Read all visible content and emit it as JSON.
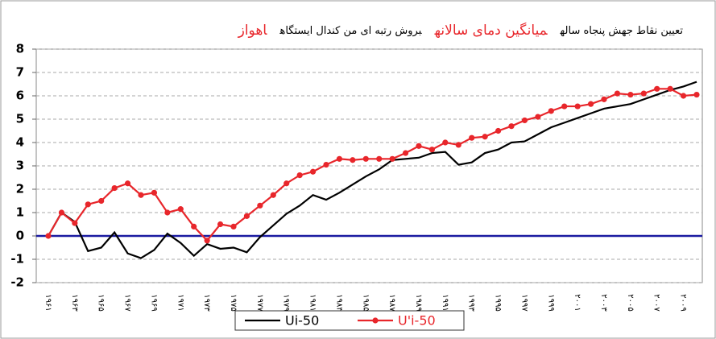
{
  "chart_data": {
    "type": "line",
    "title_parts": [
      {
        "text": "تعیین نقاط جهش پنجاه ساله",
        "color": "#000000"
      },
      {
        "text": "میانگین دمای سالانه",
        "color": "#e8262b"
      },
      {
        "text": "بروش رتبه ای من کندال ایستگاه",
        "color": "#000000"
      },
      {
        "text": "اهواز",
        "color": "#e8262b"
      }
    ],
    "categories": [
      "۱۹۶۱",
      null,
      "۱۹۶۳",
      null,
      "۱۹۶۵",
      null,
      "۱۹۶۷",
      null,
      "۱۹۶۹",
      null,
      "۱۹۷۱",
      null,
      "۱۹۷۳",
      null,
      "۱۹۷۵",
      null,
      "۱۹۷۷",
      null,
      "۱۹۷۹",
      null,
      "۱۹۸۱",
      null,
      "۱۹۸۳",
      null,
      "۱۹۸۵",
      null,
      "۱۹۸۷",
      null,
      "۱۹۸۹",
      null,
      "۱۹۹۱",
      null,
      "۱۹۹۳",
      null,
      "۱۹۹۵",
      null,
      "۱۹۹۷",
      null,
      "۱۹۹۹",
      null,
      "۲۰۰۱",
      null,
      "۲۰۰۳",
      null,
      "۲۰۰۵",
      null,
      "۲۰۰۷",
      null,
      "۲۰۰۹",
      null
    ],
    "series": [
      {
        "name": "Ui-50",
        "color": "#000000",
        "marker": false,
        "values": [
          0,
          1.0,
          0.6,
          -0.65,
          -0.5,
          0.15,
          -0.75,
          -0.95,
          -0.6,
          0.1,
          -0.3,
          -0.85,
          -0.35,
          -0.55,
          -0.5,
          -0.7,
          -0.05,
          0.45,
          0.95,
          1.3,
          1.75,
          1.55,
          1.85,
          2.2,
          2.55,
          2.85,
          3.25,
          3.3,
          3.35,
          3.55,
          3.6,
          3.05,
          3.15,
          3.55,
          3.7,
          4.0,
          4.05,
          4.35,
          4.65,
          4.85,
          5.05,
          5.25,
          5.45,
          5.55,
          5.65,
          5.85,
          6.05,
          6.25,
          6.4,
          6.6
        ]
      },
      {
        "name": "U'i-50",
        "color": "#e8262b",
        "marker": true,
        "values": [
          0,
          1.0,
          0.55,
          1.35,
          1.5,
          2.05,
          2.25,
          1.75,
          1.85,
          1.0,
          1.15,
          0.4,
          -0.2,
          0.5,
          0.4,
          0.85,
          1.3,
          1.75,
          2.25,
          2.6,
          2.75,
          3.05,
          3.3,
          3.25,
          3.3,
          3.3,
          3.3,
          3.55,
          3.85,
          3.7,
          4.0,
          3.9,
          4.2,
          4.25,
          4.5,
          4.7,
          4.95,
          5.1,
          5.35,
          5.55,
          5.55,
          5.65,
          5.85,
          6.1,
          6.05,
          6.1,
          6.3,
          6.3,
          6.0,
          6.05
        ]
      }
    ],
    "ylim": [
      -2,
      8
    ],
    "yticks": [
      -2,
      -1,
      0,
      1,
      2,
      3,
      4,
      5,
      6,
      7,
      8
    ],
    "grid": true,
    "legend": "bottom"
  }
}
